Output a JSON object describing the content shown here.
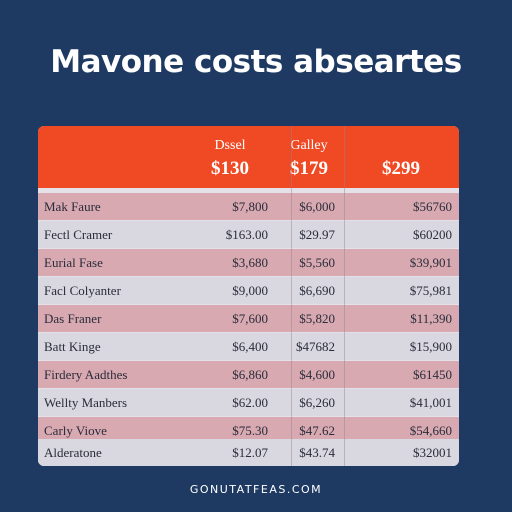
{
  "page": {
    "title": "Mavone costs abseartes",
    "footer": "GONUTATFEAS.COM"
  },
  "colors": {
    "background": "#1e3a63",
    "header": "#f04a25",
    "row_tint": "#d8a9b1",
    "row_plain": "#d9d7df"
  },
  "table": {
    "header": [
      {
        "name": "Dssel",
        "price": "$130"
      },
      {
        "name": "Galley",
        "price": "$179"
      },
      {
        "name": "",
        "price": "$299"
      }
    ],
    "rows": [
      {
        "label": "Mak Faure",
        "c1": "$7,800",
        "c2": "$6,000",
        "c3": "$56760"
      },
      {
        "label": "Fectl Cramer",
        "c1": "$163.00",
        "c2": "$29.97",
        "c3": "$60200"
      },
      {
        "label": "Eurial Fase",
        "c1": "$3,680",
        "c2": "$5,560",
        "c3": "$39,901"
      },
      {
        "label": "Facl Colyanter",
        "c1": "$9,000",
        "c2": "$6,690",
        "c3": "$75,981"
      },
      {
        "label": "Das Franer",
        "c1": "$7,600",
        "c2": "$5,820",
        "c3": "$11,390"
      },
      {
        "label": "Batt Kinge",
        "c1": "$6,400",
        "c2": "$47682",
        "c3": "$15,900"
      },
      {
        "label": "Firdery Aadthes",
        "c1": "$6,860",
        "c2": "$4,600",
        "c3": "$61450"
      },
      {
        "label": "Wellty Manbers",
        "c1": "$62.00",
        "c2": "$6,260",
        "c3": "$41,001"
      },
      {
        "label": "Carly Viove",
        "c1": "$75.30",
        "c2": "$47.62",
        "c3": "$54,660"
      },
      {
        "label": "Alderatone",
        "c1": "$12.07",
        "c2": "$43.74",
        "c3": "$32001"
      }
    ]
  }
}
